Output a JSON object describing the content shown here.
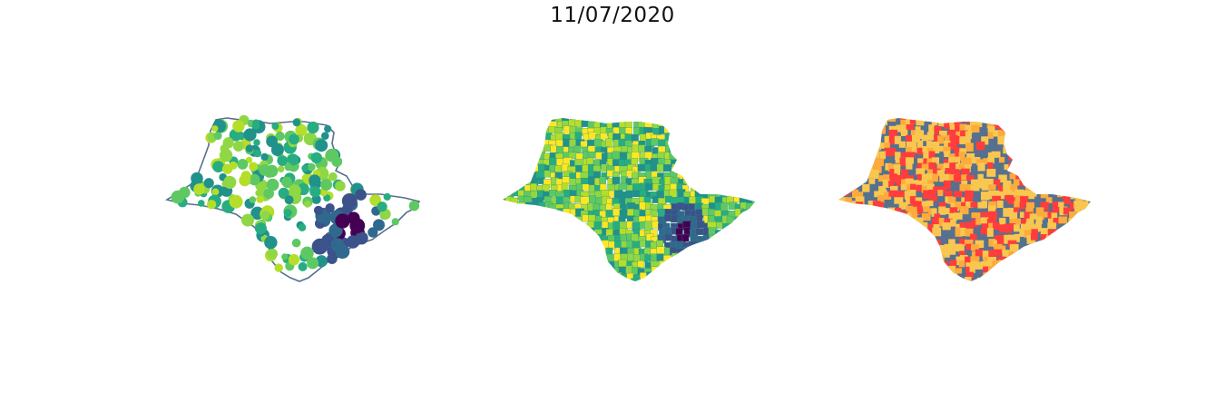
{
  "title": "11/07/2020",
  "colors": {
    "outline": "#566f8f",
    "viridis": [
      "#440154",
      "#3b528b",
      "#31688e",
      "#21918c",
      "#27ad81",
      "#5ec962",
      "#8fd744",
      "#b5de2b",
      "#fde725"
    ],
    "categorical": [
      "#56708f",
      "#f9c74f",
      "#ff3d3d",
      "#fdab3d"
    ]
  },
  "maps": [
    {
      "name": "bubble-map",
      "kind": "bubbles"
    },
    {
      "name": "choropleth-map",
      "kind": "choropleth"
    },
    {
      "name": "categorical-map",
      "kind": "categorical"
    }
  ]
}
